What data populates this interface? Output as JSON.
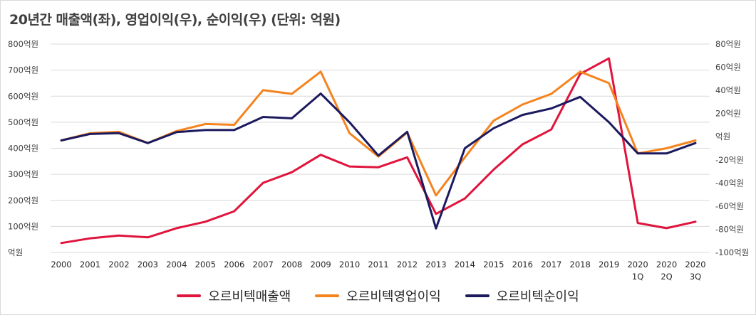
{
  "chart_data": {
    "type": "line",
    "title": "20년간 매출액(좌), 영업이익(우), 순이익(우) (단위: 억원)",
    "categories": [
      "2000",
      "2001",
      "2002",
      "2003",
      "2004",
      "2005",
      "2006",
      "2007",
      "2008",
      "2009",
      "2010",
      "2011",
      "2012",
      "2013",
      "2014",
      "2015",
      "2016",
      "2017",
      "2018",
      "2019",
      "2020 1Q",
      "2020 2Q",
      "2020 3Q"
    ],
    "y_left": {
      "ylim": [
        0,
        800
      ],
      "ticks": [
        0,
        100,
        200,
        300,
        400,
        500,
        600,
        700,
        800
      ],
      "tick_labels": [
        "억원",
        "100억원",
        "200억원",
        "300억원",
        "400억원",
        "500억원",
        "600억원",
        "700억원",
        "800억원"
      ]
    },
    "y_right": {
      "ylim": [
        -100,
        80
      ],
      "ticks": [
        -100,
        -80,
        -60,
        -40,
        -20,
        0,
        20,
        40,
        60,
        80
      ],
      "tick_labels": [
        "-100억원",
        "-80억원",
        "-60억원",
        "-40억원",
        "-20억원",
        "억원",
        "20억원",
        "40억원",
        "60억원",
        "80억원"
      ]
    },
    "grid": true,
    "legend_position": "bottom",
    "series": [
      {
        "name": "오르비텍매출액",
        "axis": "left",
        "color": "#e0143c",
        "values": [
          36,
          54,
          65,
          58,
          93,
          118,
          158,
          267,
          308,
          375,
          330,
          327,
          365,
          148,
          207,
          318,
          415,
          472,
          685,
          745,
          113,
          93,
          118
        ]
      },
      {
        "name": "오르비텍영업이익",
        "axis": "left",
        "color": "#f5841f",
        "values": [
          430,
          458,
          463,
          420,
          466,
          493,
          490,
          623,
          609,
          694,
          458,
          368,
          460,
          219,
          365,
          506,
          568,
          609,
          694,
          650,
          380,
          400,
          430
        ]
      },
      {
        "name": "오르비텍순이익",
        "axis": "left",
        "color": "#1c1a5e",
        "values": [
          430,
          455,
          458,
          420,
          462,
          470,
          470,
          520,
          515,
          610,
          500,
          372,
          463,
          92,
          400,
          477,
          528,
          553,
          597,
          500,
          380,
          380,
          420
        ]
      }
    ]
  }
}
